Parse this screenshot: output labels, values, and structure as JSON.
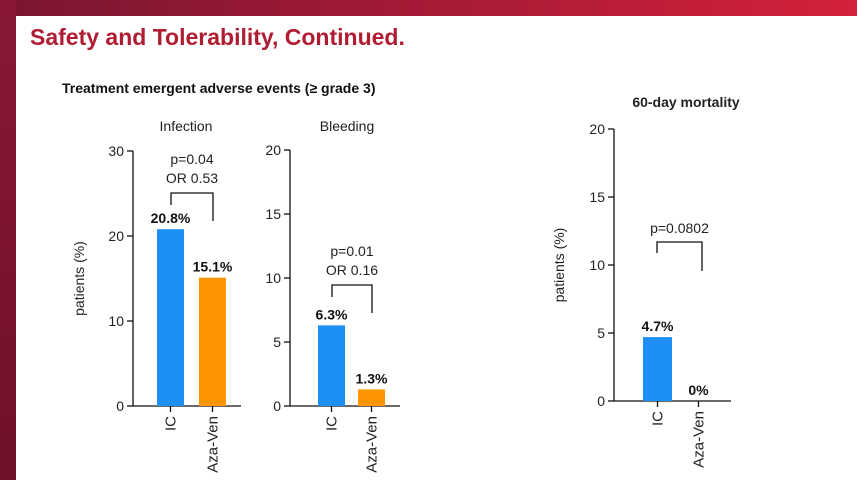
{
  "slide": {
    "title": "Safety and Tolerability, Continued.",
    "section_title": "Treatment emergent adverse events (≥ grade 3)"
  },
  "colors": {
    "IC": "#1e90f5",
    "Aza-Ven": "#ff9500",
    "title": "#b01c32"
  },
  "chart_data": [
    {
      "type": "bar",
      "title": "Infection",
      "ylabel": "patients (%)",
      "categories": [
        "IC",
        "Aza-Ven"
      ],
      "values": [
        20.8,
        15.1
      ],
      "value_labels": [
        "20.8%",
        "15.1%"
      ],
      "ylim": [
        0,
        30
      ],
      "yticks": [
        "0",
        "10",
        "20",
        "30"
      ],
      "annotation": [
        "p=0.04",
        "OR 0.53"
      ]
    },
    {
      "type": "bar",
      "title": "Bleeding",
      "ylabel": "",
      "categories": [
        "IC",
        "Aza-Ven"
      ],
      "values": [
        6.3,
        1.3
      ],
      "value_labels": [
        "6.3%",
        "1.3%"
      ],
      "ylim": [
        0,
        20
      ],
      "yticks": [
        "0",
        "5",
        "10",
        "15",
        "20"
      ],
      "annotation": [
        "p=0.01",
        "OR 0.16"
      ]
    },
    {
      "type": "bar",
      "title": "60-day mortality",
      "ylabel": "patients (%)",
      "categories": [
        "IC",
        "Aza-Ven"
      ],
      "values": [
        4.7,
        0
      ],
      "value_labels": [
        "4.7%",
        "0%"
      ],
      "ylim": [
        0,
        20
      ],
      "yticks": [
        "0",
        "5",
        "10",
        "15",
        "20"
      ],
      "annotation": [
        "p=0.0802"
      ]
    }
  ]
}
